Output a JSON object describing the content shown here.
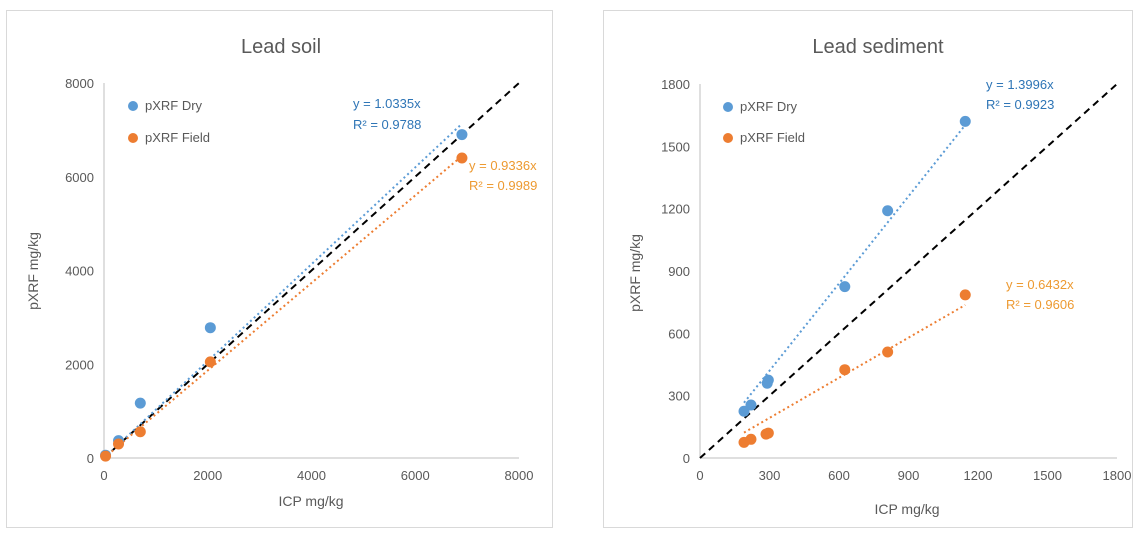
{
  "chart_data": [
    {
      "type": "scatter",
      "title": "Lead soil",
      "xlabel": "ICP mg/kg",
      "ylabel": "pXRF mg/kg",
      "xlim": [
        0,
        8000
      ],
      "ylim": [
        0,
        8000
      ],
      "xticks": [
        0,
        2000,
        4000,
        6000,
        8000
      ],
      "yticks": [
        0,
        2000,
        4000,
        6000,
        8000
      ],
      "xtick_labels": [
        "0",
        "2000",
        "4000",
        "6000",
        "8000"
      ],
      "ytick_labels": [
        "0",
        "2000",
        "4000",
        "6000",
        "8000"
      ],
      "grid": false,
      "legend_position": "top-left",
      "one_to_one_line": {
        "color": "#000000",
        "style": "dashed"
      },
      "series": [
        {
          "name": "pXRF Dry",
          "color": "#5b9bd5",
          "x": [
            30,
            280,
            700,
            2050,
            6900
          ],
          "y": [
            60,
            370,
            1170,
            2780,
            6900
          ],
          "trendline": {
            "slope": 1.0335,
            "x_max": 6900
          },
          "equation": "y = 1.0335x",
          "r2": "R² = 0.9788"
        },
        {
          "name": "pXRF Field",
          "color": "#ed7d31",
          "x": [
            30,
            280,
            700,
            2050,
            6900
          ],
          "y": [
            40,
            300,
            560,
            2050,
            6400
          ],
          "trendline": {
            "slope": 0.9336,
            "x_max": 6900
          },
          "equation": "y = 0.9336x",
          "r2": "R² = 0.9989"
        }
      ]
    },
    {
      "type": "scatter",
      "title": "Lead sediment",
      "xlabel": "ICP mg/kg",
      "ylabel": "pXRF mg/kg",
      "xlim": [
        0,
        1800
      ],
      "ylim": [
        0,
        1800
      ],
      "xticks": [
        0,
        300,
        600,
        900,
        1200,
        1500,
        1800
      ],
      "yticks": [
        0,
        300,
        600,
        900,
        1200,
        1500,
        1800
      ],
      "xtick_labels": [
        "0",
        "300",
        "600",
        "900",
        "1200",
        "1500",
        "1800"
      ],
      "ytick_labels": [
        "0",
        "300",
        "600",
        "900",
        "1200",
        "1500",
        "1800"
      ],
      "grid": false,
      "legend_position": "top-left",
      "one_to_one_line": {
        "color": "#000000",
        "style": "dashed"
      },
      "series": [
        {
          "name": "pXRF Dry",
          "color": "#5b9bd5",
          "x": [
            190,
            220,
            290,
            295,
            625,
            810,
            1145
          ],
          "y": [
            225,
            255,
            360,
            375,
            825,
            1190,
            1620
          ],
          "trendline": {
            "slope": 1.3996,
            "x_min": 190,
            "x_max": 1145
          },
          "equation": "y = 1.3996x",
          "r2": "R² = 0.9923"
        },
        {
          "name": "pXRF Field",
          "color": "#ed7d31",
          "x": [
            190,
            220,
            285,
            295,
            625,
            810,
            1145
          ],
          "y": [
            75,
            90,
            115,
            120,
            425,
            510,
            785
          ],
          "trendline": {
            "slope": 0.6432,
            "x_min": 190,
            "x_max": 1145
          },
          "equation": "y = 0.6432x",
          "r2": "R² = 0.9606"
        }
      ]
    }
  ]
}
